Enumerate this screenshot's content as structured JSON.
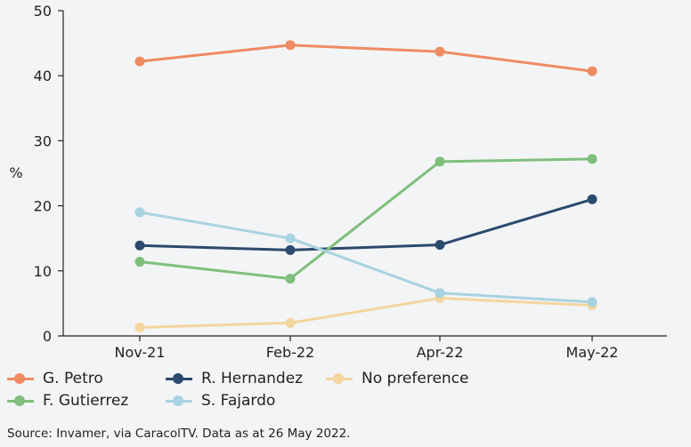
{
  "chart_data": {
    "type": "line",
    "categories": [
      "Nov-21",
      "Feb-22",
      "Apr-22",
      "May-22"
    ],
    "ylabel": "%",
    "ylim": [
      0,
      50
    ],
    "yticks": [
      0,
      10,
      20,
      30,
      40,
      50
    ],
    "grid": false,
    "legend_position": "bottom",
    "series": [
      {
        "name": "G. Petro",
        "color": "#ef8a62",
        "values": [
          42.2,
          44.7,
          43.7,
          40.7
        ]
      },
      {
        "name": "R. Hernandez",
        "color": "#2c4a6e",
        "values": [
          13.9,
          13.2,
          14.0,
          21.0
        ]
      },
      {
        "name": "No preference",
        "color": "#f4d59e",
        "values": [
          1.3,
          2.0,
          5.8,
          4.7
        ]
      },
      {
        "name": "F. Gutierrez",
        "color": "#7fbf7b",
        "values": [
          11.4,
          8.8,
          26.8,
          27.2
        ]
      },
      {
        "name": "S. Fajardo",
        "color": "#a8d3e0",
        "values": [
          19.0,
          15.0,
          6.6,
          5.2
        ]
      }
    ]
  },
  "source": "Source: Invamer, via CaracolTV. Data  as at 26 May 2022."
}
